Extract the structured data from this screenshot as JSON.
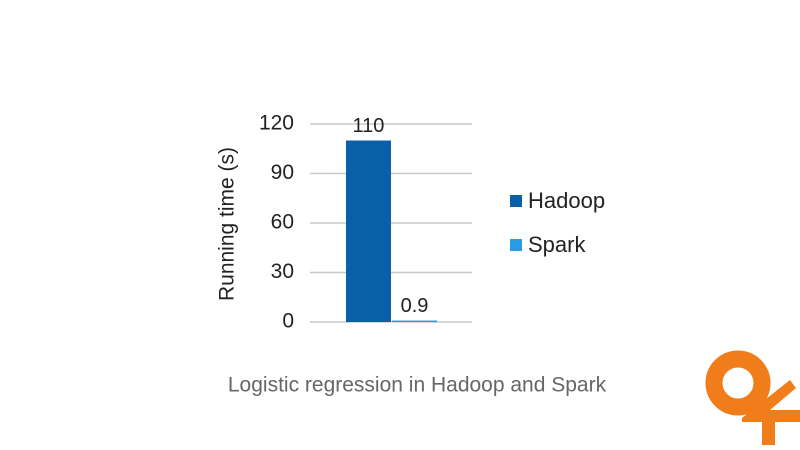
{
  "chart_data": {
    "type": "bar",
    "title": "Logistic regression in Hadoop and Spark",
    "y_label": "Running time (s)",
    "categories": [
      null
    ],
    "series": [
      {
        "name": "Hadoop",
        "color": "#0860a8",
        "values": [
          110
        ]
      },
      {
        "name": "Spark",
        "color": "#2b9be3",
        "values": [
          0.9
        ]
      }
    ],
    "ylim": [
      0,
      120
    ],
    "yticks": [
      0,
      30,
      60,
      90,
      120
    ],
    "grid": true,
    "legend": "right"
  }
}
